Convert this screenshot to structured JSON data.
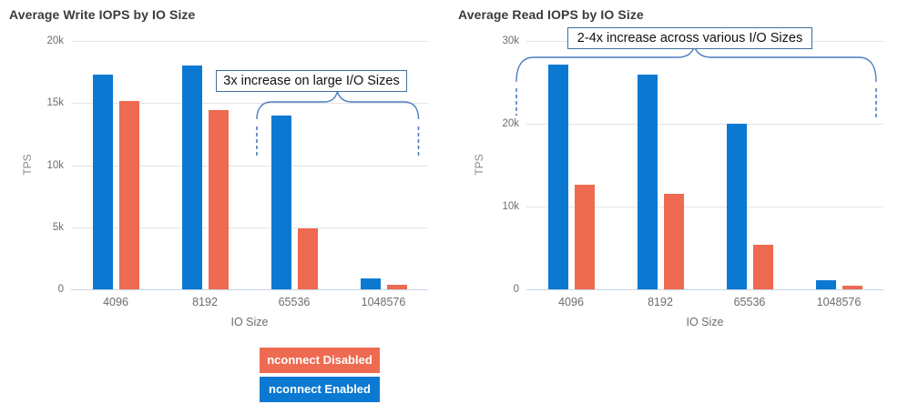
{
  "page": {
    "background": "#ffffff"
  },
  "colors": {
    "enabled_blue": "#0b79d2",
    "disabled_orange": "#ee6a50",
    "annotation_border": "#41719c",
    "brace_blue": "#4a7cc2",
    "gridline": "#e4e4e4",
    "baseline": "#c8d4e6"
  },
  "legend": {
    "items": [
      {
        "label": "nconnect Disabled",
        "color": "#ee6a50"
      },
      {
        "label": "nconnect Enabled",
        "color": "#0b79d2"
      }
    ]
  },
  "chart_data": [
    {
      "type": "bar",
      "title": "Average Write IOPS by IO Size",
      "xlabel": "IO Size",
      "ylabel": "TPS",
      "ymax": 20000,
      "ylim": [
        0,
        20000
      ],
      "grid": true,
      "yticks": [
        {
          "value": 0,
          "label": "0"
        },
        {
          "value": 5000,
          "label": "5k"
        },
        {
          "value": 10000,
          "label": "10k"
        },
        {
          "value": 15000,
          "label": "15k"
        },
        {
          "value": 20000,
          "label": "20k"
        }
      ],
      "categories": [
        "4096",
        "8192",
        "65536",
        "1048576"
      ],
      "series": [
        {
          "name": "nconnect Enabled",
          "color": "#0b79d2",
          "values": [
            17300,
            18000,
            14000,
            900
          ]
        },
        {
          "name": "nconnect Disabled",
          "color": "#ee6a50",
          "values": [
            15200,
            14400,
            4900,
            350
          ]
        }
      ],
      "annotation": {
        "text": "3x increase on large I/O Sizes"
      }
    },
    {
      "type": "bar",
      "title": "Average Read IOPS by IO Size",
      "xlabel": "IO Size",
      "ylabel": "TPS",
      "ymax": 30000,
      "ylim": [
        0,
        30000
      ],
      "grid": true,
      "yticks": [
        {
          "value": 0,
          "label": "0"
        },
        {
          "value": 10000,
          "label": "10k"
        },
        {
          "value": 20000,
          "label": "20k"
        },
        {
          "value": 30000,
          "label": "30k"
        }
      ],
      "categories": [
        "4096",
        "8192",
        "65536",
        "1048576"
      ],
      "series": [
        {
          "name": "nconnect Enabled",
          "color": "#0b79d2",
          "values": [
            27100,
            25900,
            20000,
            1100
          ]
        },
        {
          "name": "nconnect Disabled",
          "color": "#ee6a50",
          "values": [
            12600,
            11500,
            5400,
            400
          ]
        }
      ],
      "annotation": {
        "text": "2-4x increase across various I/O Sizes"
      }
    }
  ]
}
